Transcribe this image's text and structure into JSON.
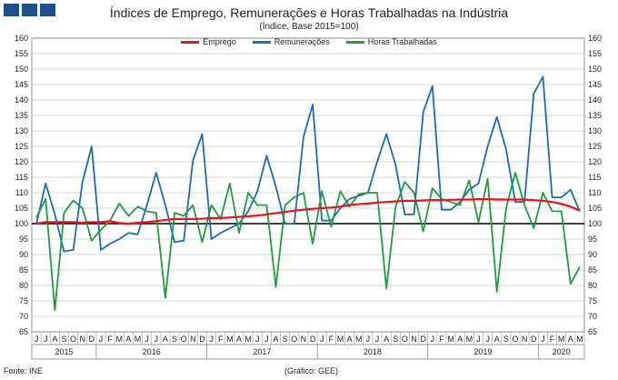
{
  "header": {
    "title": "Índices de Emprego, Remunerações e Horas Trabalhadas na Indústria",
    "subtitle": "(Índice, Base 2015=100)"
  },
  "footer": {
    "source": "Fonte: INE",
    "credit": "(Gráfico: GEE)"
  },
  "colors": {
    "logo": "#1f4e8c",
    "grid": "#c8c8c8",
    "baseline": "#000000"
  },
  "chart_data": {
    "type": "line",
    "title": "Índices de Emprego, Remunerações e Horas Trabalhadas na Indústria",
    "subtitle": "(Índice, Base 2015=100)",
    "ylim": [
      65,
      160
    ],
    "yticks": [
      65,
      70,
      75,
      80,
      85,
      90,
      95,
      100,
      105,
      110,
      115,
      120,
      125,
      130,
      135,
      140,
      145,
      150,
      155,
      160
    ],
    "grid": true,
    "legend_position": "top-center",
    "reference_line": 100,
    "x_month_labels": [
      "J",
      "J",
      "A",
      "S",
      "O",
      "N",
      "D",
      "J",
      "F",
      "M",
      "A",
      "M",
      "J",
      "J",
      "A",
      "S",
      "O",
      "N",
      "D",
      "J",
      "F",
      "M",
      "A",
      "M",
      "J",
      "J",
      "A",
      "S",
      "O",
      "N",
      "D",
      "J",
      "F",
      "M",
      "A",
      "M",
      "J",
      "J",
      "A",
      "S",
      "O",
      "N",
      "D",
      "J",
      "F",
      "M",
      "A",
      "M",
      "J",
      "J",
      "A",
      "S",
      "O",
      "N",
      "D",
      "J",
      "F",
      "M",
      "A",
      "M"
    ],
    "year_groups": [
      {
        "label": "2015",
        "start": 0,
        "end": 6
      },
      {
        "label": "2016",
        "start": 7,
        "end": 18
      },
      {
        "label": "2017",
        "start": 19,
        "end": 30
      },
      {
        "label": "2018",
        "start": 31,
        "end": 42
      },
      {
        "label": "2019",
        "start": 43,
        "end": 54
      },
      {
        "label": "2020",
        "start": 55,
        "end": 59
      }
    ],
    "series": [
      {
        "name": "Emprego",
        "color": "#e8141c",
        "values": [
          100,
          100.5,
          100.5,
          100.5,
          100.5,
          100.3,
          100.5,
          100.5,
          100.8,
          100.2,
          100,
          100.3,
          100.5,
          100.8,
          101.2,
          101.5,
          101.5,
          101.5,
          101.6,
          101.8,
          101.8,
          102,
          102.2,
          102.4,
          102.6,
          103,
          103.4,
          103.8,
          104.2,
          104.5,
          104.8,
          105,
          105.2,
          105.5,
          106,
          106.3,
          106.5,
          106.8,
          107,
          107.2,
          107.4,
          107.4,
          107.5,
          107.6,
          107.6,
          107.7,
          107.8,
          107.8,
          107.9,
          107.9,
          107.8,
          107.8,
          107.8,
          107.8,
          107.6,
          107.4,
          107,
          106.4,
          105.5,
          104.2
        ]
      },
      {
        "name": "Remunerações",
        "color": "#1c6bb4",
        "values": [
          100,
          113,
          103,
          91,
          91.5,
          113.5,
          125,
          91.5,
          93.5,
          95,
          97,
          96.5,
          106,
          116.5,
          106,
          94,
          94.5,
          120.5,
          129,
          95,
          97,
          98.5,
          100,
          104,
          110.5,
          122,
          112,
          100,
          100,
          128,
          138.5,
          101,
          101,
          105,
          108,
          109,
          110,
          120,
          129,
          119,
          103,
          103,
          136,
          144.5,
          104.5,
          104.5,
          107,
          111,
          113,
          125,
          134.5,
          124,
          107,
          107,
          142,
          147.5,
          108.5,
          108.5,
          111,
          104
        ]
      },
      {
        "name": "Horas Trabalhadas",
        "color": "#1f9c3c",
        "values": [
          102,
          108,
          72,
          103.5,
          107.5,
          105,
          94.5,
          98,
          101,
          106.5,
          102.5,
          105.5,
          104,
          103.5,
          76,
          103.5,
          102.5,
          106,
          94,
          106,
          101.5,
          113,
          97,
          110,
          106,
          106,
          79.5,
          106,
          108.5,
          110,
          93.5,
          110.5,
          99,
          110.5,
          105.5,
          109.5,
          110,
          110,
          79,
          105.5,
          113.5,
          110,
          97.5,
          111.5,
          108,
          107,
          106,
          114,
          100.5,
          114.5,
          78,
          105,
          116.5,
          106,
          98.5,
          110,
          104,
          104,
          80.5,
          86
        ]
      }
    ]
  }
}
